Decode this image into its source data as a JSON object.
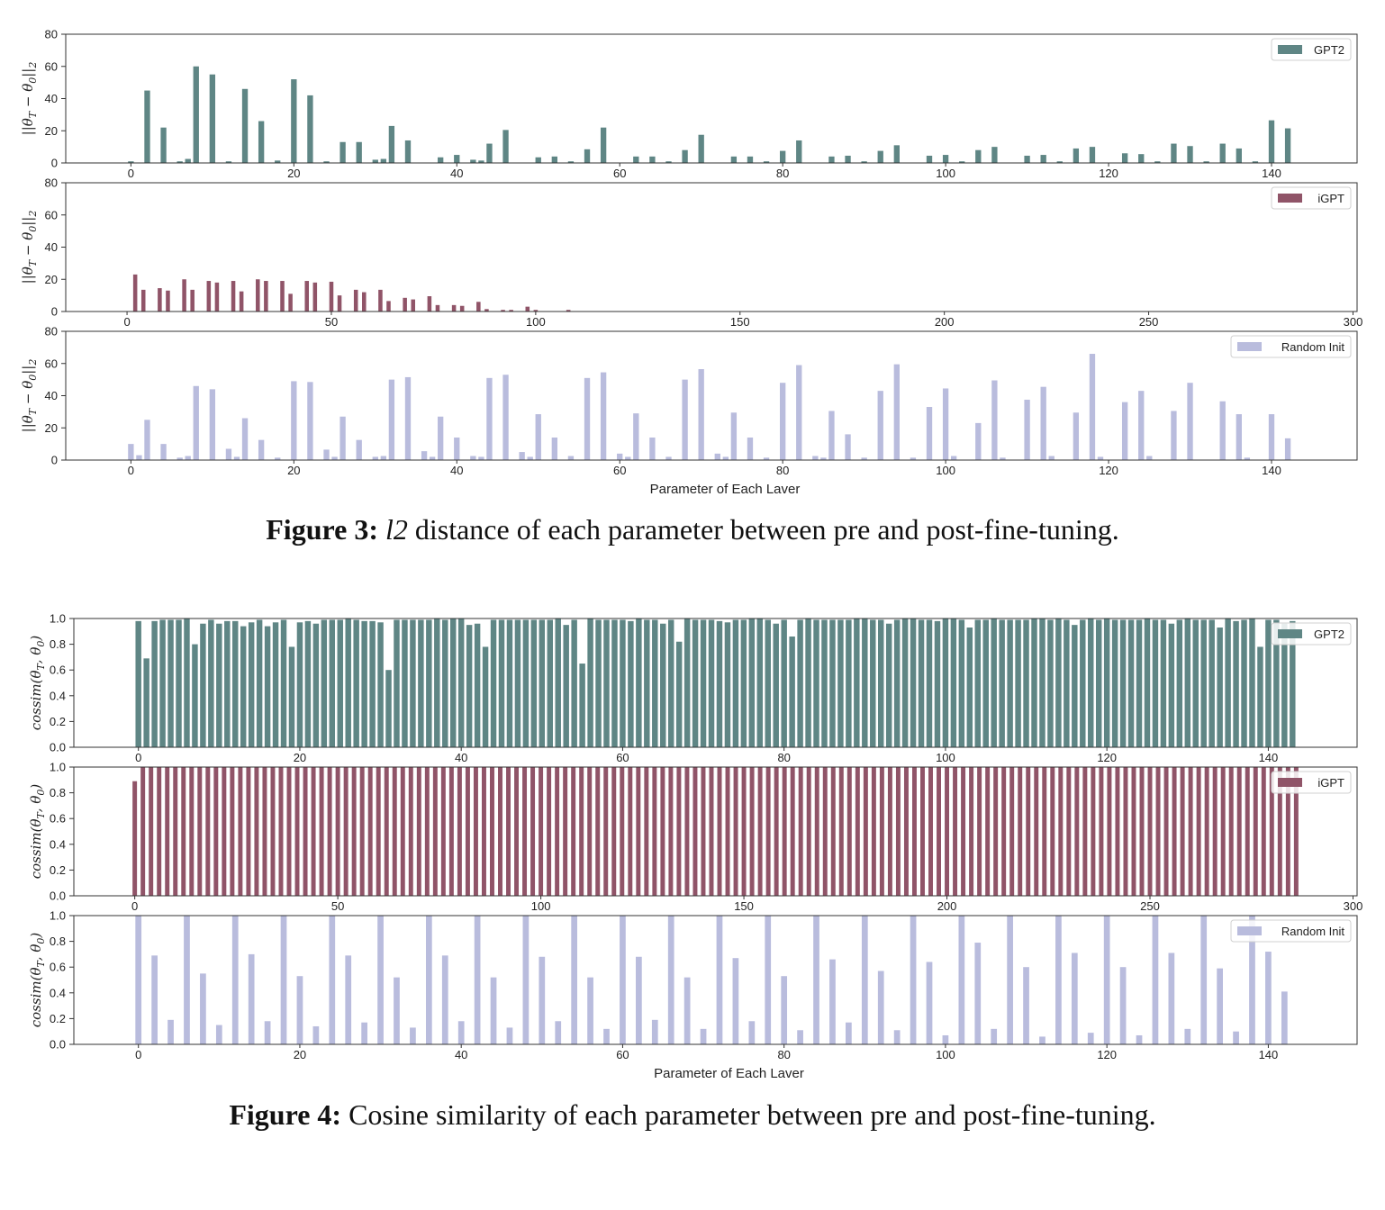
{
  "figure3": {
    "caption_label": "Figure 3:",
    "caption_math": "l2",
    "caption_text": " distance of each parameter between pre and post-fine-tuning."
  },
  "figure4": {
    "caption_label": "Figure 4:",
    "caption_text": " Cosine similarity of each parameter between pre and post-fine-tuning."
  },
  "colors": {
    "gpt2": "#5f8685",
    "igpt": "#905468",
    "random": "#b9bcdd"
  },
  "chart_data": [
    {
      "id": "fig3-gpt2",
      "type": "bar",
      "series_name": "GPT2",
      "color_key": "gpt2",
      "ylabel": "||θ_T − θ_0||_2",
      "xlabel": "",
      "xlim": [
        -8,
        150.5
      ],
      "ylim": [
        0,
        80
      ],
      "xticks": [
        0,
        20,
        40,
        60,
        80,
        100,
        120,
        140
      ],
      "yticks": [
        0,
        20,
        40,
        60,
        80
      ],
      "x": [
        0,
        2,
        4,
        6,
        7,
        8,
        10,
        12,
        14,
        16,
        18,
        20,
        22,
        24,
        26,
        28,
        30,
        31,
        32,
        34,
        38,
        40,
        42,
        43,
        44,
        46,
        50,
        52,
        54,
        56,
        58,
        62,
        64,
        66,
        68,
        70,
        74,
        76,
        78,
        80,
        82,
        86,
        88,
        90,
        92,
        94,
        98,
        100,
        102,
        104,
        106,
        110,
        112,
        114,
        116,
        118,
        122,
        124,
        126,
        128,
        130,
        132,
        134,
        136,
        138,
        140,
        142
      ],
      "values": [
        1,
        45,
        22,
        1,
        2.5,
        60,
        55,
        1,
        46,
        26,
        1.5,
        52,
        42,
        1,
        13,
        13,
        2,
        2.5,
        23,
        14,
        3.5,
        5,
        2,
        1.5,
        12,
        20.5,
        3.5,
        4,
        1,
        8.5,
        22,
        4,
        4,
        1,
        8,
        17.5,
        4,
        4,
        1,
        7.5,
        14,
        4,
        4.5,
        1,
        7.5,
        11,
        4.5,
        5,
        1,
        8,
        10,
        4.5,
        5,
        1,
        9,
        10,
        6,
        5.5,
        1,
        12,
        10.5,
        1,
        12,
        9,
        1,
        26.5,
        21.5
      ]
    },
    {
      "id": "fig3-igpt",
      "type": "bar",
      "series_name": "iGPT",
      "color_key": "igpt",
      "ylabel": "||θ_T − θ_0||_2",
      "xlabel": "",
      "xlim": [
        -15,
        301
      ],
      "ylim": [
        0,
        80
      ],
      "xticks": [
        0,
        50,
        100,
        150,
        200,
        250,
        300
      ],
      "yticks": [
        0,
        20,
        40,
        60,
        80
      ],
      "x": [
        2,
        4,
        8,
        10,
        14,
        16,
        20,
        22,
        26,
        28,
        32,
        34,
        38,
        40,
        44,
        46,
        50,
        52,
        56,
        58,
        62,
        64,
        68,
        70,
        74,
        76,
        80,
        82,
        86,
        88,
        92,
        94,
        98,
        100,
        108
      ],
      "values": [
        23,
        13.5,
        14.5,
        13,
        20,
        13.5,
        19,
        18,
        19,
        12.5,
        20,
        19,
        19,
        11,
        19,
        18,
        18.5,
        10,
        13.5,
        12,
        13.5,
        6.5,
        8.5,
        7.5,
        9.5,
        4,
        4,
        3.5,
        6,
        1.5,
        1,
        1,
        3,
        1,
        1
      ]
    },
    {
      "id": "fig3-random",
      "type": "bar",
      "series_name": "Random Init",
      "color_key": "random",
      "ylabel": "||θ_T − θ_0||_2",
      "xlabel": "Parameter of Each Laver",
      "xlim": [
        -8,
        150.5
      ],
      "ylim": [
        0,
        80
      ],
      "xticks": [
        0,
        20,
        40,
        60,
        80,
        100,
        120,
        140
      ],
      "yticks": [
        0,
        20,
        40,
        60,
        80
      ],
      "x": [
        0,
        1,
        2,
        4,
        6,
        7,
        8,
        10,
        12,
        13,
        14,
        16,
        18,
        20,
        22,
        24,
        25,
        26,
        28,
        30,
        31,
        32,
        34,
        36,
        37,
        38,
        40,
        42,
        43,
        44,
        46,
        48,
        49,
        50,
        52,
        54,
        56,
        58,
        60,
        61,
        62,
        64,
        66,
        68,
        70,
        72,
        73,
        74,
        76,
        78,
        80,
        82,
        84,
        85,
        86,
        88,
        90,
        92,
        94,
        96,
        98,
        100,
        101,
        104,
        106,
        107,
        110,
        112,
        113,
        116,
        118,
        119,
        122,
        124,
        125,
        128,
        130,
        134,
        136,
        137,
        140,
        142
      ],
      "values": [
        10,
        3,
        25,
        10,
        1.5,
        2.5,
        46,
        44,
        7,
        2,
        26,
        12.5,
        1.5,
        49,
        48.5,
        6.5,
        2,
        27,
        12.5,
        2,
        2.5,
        50,
        51.5,
        5.5,
        2,
        27,
        14,
        2.5,
        2,
        51,
        53,
        5,
        2,
        28.5,
        14,
        2.5,
        51,
        54.5,
        4,
        2,
        29,
        14,
        2,
        50,
        56.5,
        4,
        2,
        29.5,
        14,
        1.5,
        48,
        59,
        2.5,
        1.5,
        30.5,
        16,
        1.5,
        43,
        59.5,
        1.5,
        33,
        44.5,
        2.5,
        23,
        49.5,
        1.5,
        37.5,
        45.5,
        2.5,
        29.5,
        66,
        2,
        36,
        43,
        2.5,
        30.5,
        48,
        36.5,
        28.5,
        1.5,
        28.5,
        13.5
      ]
    },
    {
      "id": "fig4-gpt2",
      "type": "bar",
      "series_name": "GPT2",
      "color_key": "gpt2",
      "ylabel": "cossim(θ_T, θ_0)",
      "xlabel": "",
      "xlim": [
        -8,
        151
      ],
      "ylim": [
        0,
        1
      ],
      "xticks": [
        0,
        20,
        40,
        60,
        80,
        100,
        120,
        140
      ],
      "yticks": [
        0,
        0.2,
        0.4,
        0.6,
        0.8,
        1.0
      ],
      "x_range": [
        0,
        143
      ],
      "values": [
        0.98,
        0.69,
        0.98,
        0.99,
        0.99,
        0.99,
        1.0,
        0.8,
        0.96,
        0.99,
        0.96,
        0.98,
        0.98,
        0.94,
        0.97,
        0.99,
        0.94,
        0.97,
        0.99,
        0.78,
        0.97,
        0.98,
        0.96,
        0.99,
        0.99,
        0.99,
        1.0,
        0.99,
        0.98,
        0.98,
        0.97,
        0.6,
        0.99,
        0.99,
        0.99,
        0.99,
        0.99,
        1.0,
        0.99,
        1.0,
        1.0,
        0.95,
        0.96,
        0.78,
        0.99,
        0.99,
        0.99,
        0.99,
        0.99,
        0.99,
        0.99,
        0.99,
        1.0,
        0.95,
        0.99,
        0.65,
        1.0,
        0.99,
        0.99,
        0.99,
        0.99,
        0.98,
        1.0,
        0.99,
        0.99,
        0.96,
        0.99,
        0.82,
        1.0,
        0.99,
        0.99,
        0.99,
        0.98,
        0.97,
        0.99,
        0.99,
        1.0,
        1.0,
        0.99,
        0.96,
        0.99,
        0.86,
        0.99,
        1.0,
        0.99,
        0.99,
        0.99,
        0.99,
        0.99,
        1.0,
        1.0,
        0.99,
        0.99,
        0.96,
        0.99,
        1.0,
        1.0,
        0.99,
        0.99,
        0.98,
        1.0,
        1.0,
        0.99,
        0.93,
        0.99,
        0.99,
        1.0,
        0.99,
        0.99,
        0.99,
        0.99,
        1.0,
        1.0,
        0.99,
        1.0,
        0.99,
        0.95,
        0.99,
        1.0,
        0.99,
        1.0,
        0.99,
        0.99,
        0.99,
        0.99,
        1.0,
        0.99,
        0.99,
        0.96,
        0.99,
        1.0,
        0.99,
        0.99,
        0.99,
        0.93,
        1.0,
        0.98,
        0.99,
        1.0,
        0.78,
        0.99,
        0.99,
        0.96,
        0.98
      ]
    },
    {
      "id": "fig4-igpt",
      "type": "bar",
      "series_name": "iGPT",
      "color_key": "igpt",
      "ylabel": "cossim(θ_T, θ_0)",
      "xlabel": "",
      "xlim": [
        -15,
        301
      ],
      "ylim": [
        0,
        1
      ],
      "xticks": [
        0,
        50,
        100,
        150,
        200,
        250,
        300
      ],
      "yticks": [
        0,
        0.2,
        0.4,
        0.6,
        0.8,
        1.0
      ],
      "x_range": [
        0,
        287
      ],
      "x_step": 2,
      "values_rule": "first 0.89, rest 1.0",
      "first_value": 0.89,
      "rest_value": 1.0
    },
    {
      "id": "fig4-random",
      "type": "bar",
      "series_name": "Random Init",
      "color_key": "random",
      "ylabel": "cossim(θ_T, θ_0)",
      "xlabel": "Parameter of Each Laver",
      "xlim": [
        -8,
        151
      ],
      "ylim": [
        0,
        1
      ],
      "xticks": [
        0,
        20,
        40,
        60,
        80,
        100,
        120,
        140
      ],
      "yticks": [
        0,
        0.2,
        0.4,
        0.6,
        0.8,
        1.0
      ],
      "x_start": 0,
      "x_step": 2,
      "values": [
        1.0,
        0.69,
        0.19,
        1.0,
        0.55,
        0.15,
        1.0,
        0.7,
        0.18,
        1.0,
        0.53,
        0.14,
        1.0,
        0.69,
        0.17,
        1.0,
        0.52,
        0.13,
        1.0,
        0.69,
        0.18,
        1.0,
        0.52,
        0.13,
        1.0,
        0.68,
        0.18,
        1.0,
        0.52,
        0.12,
        1.0,
        0.68,
        0.19,
        1.0,
        0.52,
        0.12,
        1.0,
        0.67,
        0.18,
        1.0,
        0.53,
        0.11,
        1.0,
        0.66,
        0.17,
        1.0,
        0.57,
        0.11,
        1.0,
        0.64,
        0.07,
        1.0,
        0.79,
        0.12,
        1.0,
        0.6,
        0.06,
        1.0,
        0.71,
        0.09,
        1.0,
        0.6,
        0.07,
        1.0,
        0.71,
        0.12,
        1.0,
        0.59,
        0.1,
        1.0,
        0.72,
        0.41
      ]
    }
  ]
}
